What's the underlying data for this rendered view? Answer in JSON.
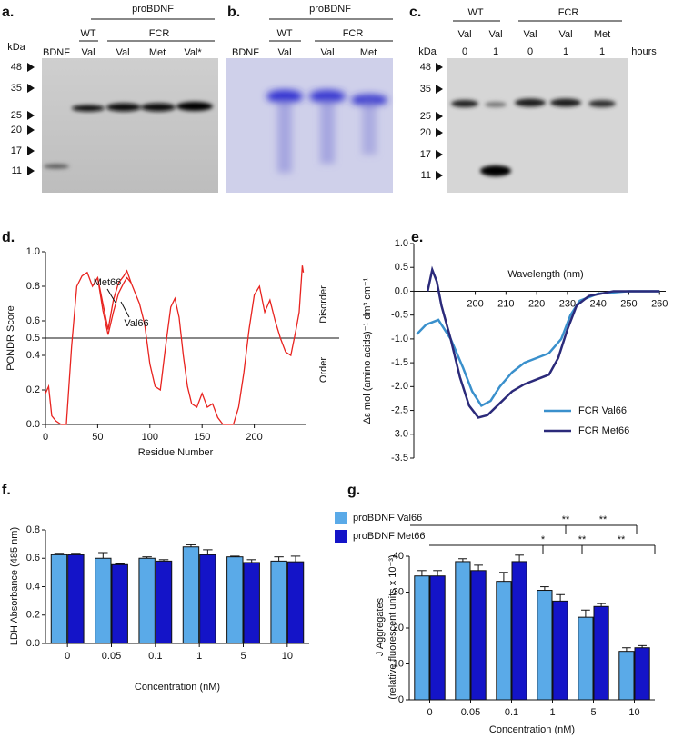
{
  "gels": [
    {
      "panel_label": "a.",
      "header": "proBDNF",
      "groups": [
        "WT",
        "FCR"
      ],
      "lanes": [
        "BDNF",
        "Val",
        "Val",
        "Met",
        "Val*"
      ],
      "kda_label": "kDa",
      "markers": [
        "48",
        "35",
        "25",
        "20",
        "17",
        "11"
      ]
    },
    {
      "panel_label": "b.",
      "header": "proBDNF",
      "groups": [
        "WT",
        "FCR"
      ],
      "lanes": [
        "BDNF",
        "Val",
        "Val",
        "Met"
      ]
    },
    {
      "panel_label": "c.",
      "groups": [
        "WT",
        "FCR"
      ],
      "lanes": [
        "Val",
        "Val",
        "Val",
        "Val",
        "Met"
      ],
      "hours": [
        "0",
        "1",
        "0",
        "1",
        "1"
      ],
      "hours_label": "hours",
      "kda_label": "kDa",
      "markers": [
        "48",
        "35",
        "25",
        "20",
        "17",
        "11"
      ]
    }
  ],
  "chart_data": [
    {
      "type": "line",
      "panel_label": "d.",
      "x_label": "Residue Number",
      "y_label": "PONDR Score",
      "annotations": [
        "Met66",
        "Val66",
        "Disorder",
        "Order"
      ],
      "xlim": [
        0,
        250
      ],
      "ylim": [
        0,
        1
      ],
      "xticks": [
        0,
        50,
        100,
        150,
        200
      ],
      "yticks": [
        {
          "value": 0,
          "label": "0.0"
        },
        0.2,
        0.4,
        0.5,
        0.6,
        0.8,
        {
          "value": 1,
          "label": "1.0"
        }
      ],
      "threshold": 0.5,
      "disorder_region": [
        25,
        100
      ],
      "series": [
        {
          "color": "#e8231f",
          "x": [
            0,
            3,
            6,
            10,
            15,
            20,
            25,
            30,
            35,
            40,
            45,
            50,
            55,
            60,
            65,
            70,
            75,
            78,
            82,
            86,
            90,
            95,
            100,
            105,
            110,
            115,
            120,
            124,
            128,
            132,
            136,
            140,
            145,
            150,
            155,
            160,
            165,
            170,
            175,
            180,
            185,
            190,
            195,
            200,
            205,
            210,
            215,
            220,
            225,
            230,
            235,
            240,
            243,
            246,
            247
          ],
          "values": [
            0.18,
            0.22,
            0.05,
            0.02,
            0,
            0,
            0.45,
            0.8,
            0.86,
            0.88,
            0.8,
            0.85,
            0.7,
            0.55,
            0.72,
            0.82,
            0.86,
            0.89,
            0.82,
            0.76,
            0.7,
            0.58,
            0.35,
            0.22,
            0.2,
            0.45,
            0.68,
            0.73,
            0.62,
            0.4,
            0.22,
            0.12,
            0.1,
            0.18,
            0.1,
            0.12,
            0.04,
            0,
            0,
            0,
            0.1,
            0.3,
            0.55,
            0.75,
            0.8,
            0.65,
            0.72,
            0.6,
            0.5,
            0.42,
            0.4,
            0.55,
            0.65,
            0.92,
            0.88
          ]
        },
        {
          "color": "#e8231f",
          "x": [
            50,
            55,
            60,
            65,
            70,
            75,
            78,
            82
          ],
          "values": [
            0.85,
            0.66,
            0.52,
            0.65,
            0.76,
            0.82,
            0.85,
            0.82
          ]
        }
      ]
    },
    {
      "type": "line",
      "panel_label": "e.",
      "x_label": "Wavelength (nm)",
      "y_label": "Δε mol (amino acids)⁻¹ dm³ cm⁻¹",
      "xlim": [
        180,
        262
      ],
      "ylim": [
        -3.5,
        1
      ],
      "xticks": [
        200,
        210,
        220,
        230,
        240,
        250,
        260
      ],
      "yticks": [
        {
          "value": 1,
          "label": "1.0"
        },
        0.5,
        {
          "value": 0,
          "label": "0.0"
        },
        -0.5,
        {
          "value": -1,
          "label": "-1.0"
        },
        -1.5,
        {
          "value": -2,
          "label": "-2.0"
        },
        -2.5,
        {
          "value": -3,
          "label": "-3.0"
        },
        -3.5
      ],
      "legend": "bottom-right",
      "series": [
        {
          "name": "FCR Val66",
          "color": "#3a90cc",
          "x": [
            181,
            184,
            188,
            192,
            196,
            199,
            202,
            205,
            208,
            212,
            216,
            220,
            224,
            228,
            231,
            234,
            240,
            250,
            260
          ],
          "values": [
            -0.9,
            -0.7,
            -0.6,
            -1.0,
            -1.6,
            -2.1,
            -2.4,
            -2.3,
            -2.0,
            -1.7,
            -1.5,
            -1.4,
            -1.3,
            -1.0,
            -0.5,
            -0.2,
            -0.05,
            0,
            0
          ]
        },
        {
          "name": "FCR Met66",
          "color": "#2b2a7a",
          "x": [
            184.5,
            186,
            187.5,
            189,
            192,
            195,
            198,
            201,
            204,
            208,
            212,
            216,
            220,
            224,
            227,
            230,
            233,
            237,
            245,
            260
          ],
          "values": [
            0,
            0.45,
            0.2,
            -0.3,
            -1.0,
            -1.8,
            -2.4,
            -2.65,
            -2.6,
            -2.35,
            -2.1,
            -1.95,
            -1.85,
            -1.75,
            -1.4,
            -0.8,
            -0.3,
            -0.1,
            0,
            0
          ]
        }
      ]
    },
    {
      "type": "bar",
      "panel_label": "f.",
      "x_label": "Concentration (nM)",
      "y_label": "LDH Absorbance (485 nm)",
      "categories": [
        "0",
        "0.05",
        "0.1",
        "1",
        "5",
        "10"
      ],
      "ylim": [
        0,
        0.8
      ],
      "yticks": [
        {
          "value": 0,
          "label": "0.0"
        },
        0.2,
        0.4,
        0.6,
        0.8
      ],
      "legend": "right",
      "series": [
        {
          "name": "proBDNF Val66",
          "color": "#5aaae8",
          "values": [
            0.625,
            0.6,
            0.6,
            0.68,
            0.61,
            0.58
          ],
          "errors": [
            0.01,
            0.04,
            0.01,
            0.015,
            0.005,
            0.03
          ]
        },
        {
          "name": "proBDNF Met66",
          "color": "#1414c8",
          "values": [
            0.625,
            0.555,
            0.58,
            0.625,
            0.57,
            0.575
          ],
          "errors": [
            0.01,
            0.005,
            0.01,
            0.035,
            0.02,
            0.04
          ]
        }
      ]
    },
    {
      "type": "bar",
      "panel_label": "g.",
      "x_label": "Concentration (nM)",
      "y_label": [
        "J Aggregates",
        "(relative fluorescent units x 10⁻³)"
      ],
      "categories": [
        "0",
        "0.05",
        "0.1",
        "1",
        "5",
        "10"
      ],
      "ylim": [
        0,
        40
      ],
      "yticks": [
        0,
        10,
        20,
        30,
        40
      ],
      "annotations": [
        "**",
        "**",
        "*",
        "**",
        "**"
      ],
      "series": [
        {
          "color": "#5aaae8",
          "values": [
            34.5,
            38.5,
            33,
            30.5,
            23,
            13.5
          ],
          "errors": [
            1.5,
            0.8,
            2.5,
            1,
            2,
            1
          ]
        },
        {
          "color": "#1414c8",
          "values": [
            34.5,
            36,
            38.5,
            27.5,
            26,
            14.5
          ],
          "errors": [
            1.5,
            1.5,
            1.8,
            1.8,
            0.8,
            0.6
          ]
        }
      ]
    }
  ]
}
